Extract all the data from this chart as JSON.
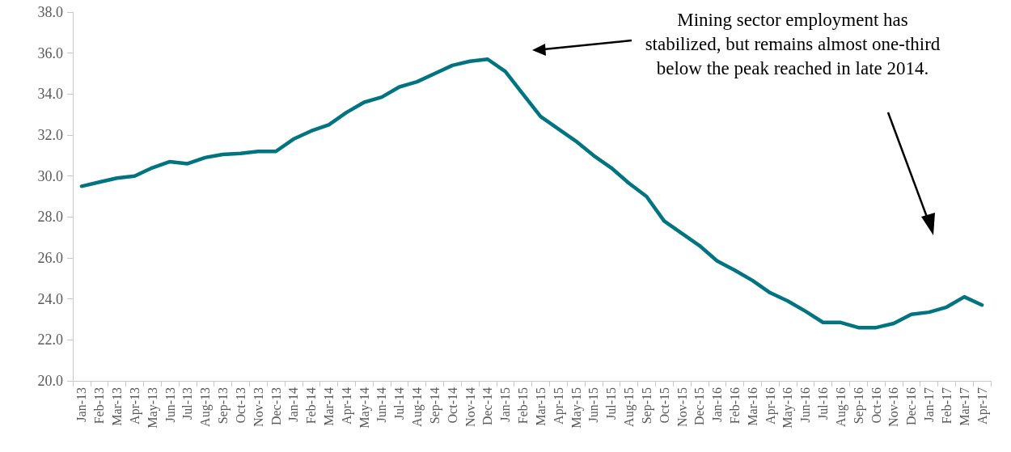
{
  "chart_data": {
    "type": "line",
    "categories": [
      "Jan-13",
      "Feb-13",
      "Mar-13",
      "Apr-13",
      "May-13",
      "Jun-13",
      "Jul-13",
      "Aug-13",
      "Sep-13",
      "Oct-13",
      "Nov-13",
      "Dec-13",
      "Jan-14",
      "Feb-14",
      "Mar-14",
      "Apr-14",
      "May-14",
      "Jun-14",
      "Jul-14",
      "Aug-14",
      "Sep-14",
      "Oct-14",
      "Nov-14",
      "Dec-14",
      "Jan-15",
      "Feb-15",
      "Mar-15",
      "Apr-15",
      "May-15",
      "Jun-15",
      "Jul-15",
      "Aug-15",
      "Sep-15",
      "Oct-15",
      "Nov-15",
      "Dec-15",
      "Jan-16",
      "Feb-16",
      "Mar-16",
      "Apr-16",
      "May-16",
      "Jun-16",
      "Jul-16",
      "Aug-16",
      "Sep-16",
      "Oct-16",
      "Nov-16",
      "Dec-16",
      "Jan-17",
      "Feb-17",
      "Mar-17",
      "Apr-17"
    ],
    "series": [
      {
        "color": "#007481",
        "values": [
          29.5,
          29.7,
          29.9,
          30.0,
          30.4,
          30.7,
          30.6,
          30.9,
          31.05,
          31.1,
          31.2,
          31.2,
          31.8,
          32.2,
          32.5,
          33.1,
          33.6,
          33.85,
          34.35,
          34.6,
          35.0,
          35.4,
          35.6,
          35.7,
          35.1,
          34.0,
          32.9,
          32.3,
          31.7,
          31.0,
          30.4,
          29.65,
          29.0,
          27.8,
          27.2,
          26.6,
          25.85,
          25.4,
          24.9,
          24.3,
          23.9,
          23.4,
          22.85,
          22.85,
          22.6,
          22.6,
          22.8,
          23.25,
          23.35,
          23.6,
          24.1,
          23.7
        ]
      }
    ],
    "ylim": [
      20,
      38
    ],
    "yticks": [
      {
        "value": 20,
        "label": "20.0"
      },
      {
        "value": 22,
        "label": "22.0"
      },
      {
        "value": 24,
        "label": "24.0"
      },
      {
        "value": 26,
        "label": "26.0"
      },
      {
        "value": 28,
        "label": "28.0"
      },
      {
        "value": 30,
        "label": "30.0"
      },
      {
        "value": 32,
        "label": "32.0"
      },
      {
        "value": 34,
        "label": "34.0"
      },
      {
        "value": 36,
        "label": "36.0"
      },
      {
        "value": 38,
        "label": "38.0"
      }
    ],
    "grid": false,
    "marker": "none",
    "line_style": "solid",
    "annotations": [
      "Mining sector employment has stabilized, but remains almost one-third below the peak reached in late 2014."
    ]
  }
}
